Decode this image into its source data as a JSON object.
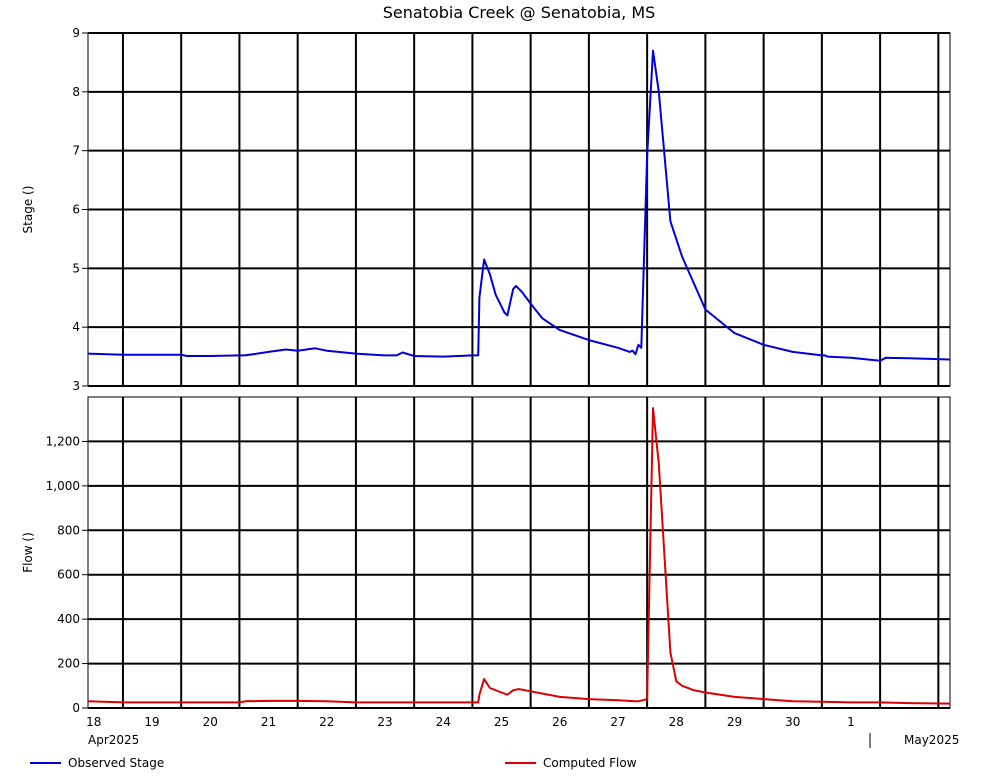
{
  "chart_data": {
    "title": "Senatobia Creek @ Senatobia, MS",
    "type": "line",
    "grid": true,
    "legend_placement": "bottom",
    "x_axis": {
      "day_ticks": [
        "18",
        "19",
        "20",
        "21",
        "22",
        "23",
        "24",
        "25",
        "26",
        "27",
        "28",
        "29",
        "30",
        "1"
      ],
      "month_labels": [
        "Apr2025",
        "May2025"
      ]
    },
    "panels": [
      {
        "ylabel": "Stage ()",
        "ylim": [
          3,
          9
        ],
        "yticks": [
          3,
          4,
          5,
          6,
          7,
          8,
          9
        ],
        "ytick_labels": [
          "3",
          "4",
          "5",
          "6",
          "7",
          "8",
          "9"
        ],
        "series": [
          {
            "name": "Observed Stage",
            "color": "#0000dd",
            "x": [
              17.9,
              18.5,
              19.0,
              19.5,
              19.6,
              20.0,
              20.5,
              20.6,
              21.0,
              21.3,
              21.5,
              21.8,
              22.0,
              22.5,
              23.0,
              23.2,
              23.3,
              23.5,
              24.0,
              24.5,
              24.6,
              24.62,
              24.7,
              24.8,
              24.9,
              25.0,
              25.05,
              25.1,
              25.2,
              25.25,
              25.35,
              25.5,
              25.7,
              26.0,
              26.5,
              27.0,
              27.2,
              27.25,
              27.3,
              27.35,
              27.4,
              27.5,
              27.6,
              27.7,
              27.9,
              28.1,
              28.5,
              29.0,
              29.5,
              30.0,
              30.5,
              30.55,
              30.6,
              31.0,
              31.5,
              31.6,
              32.0,
              32.7
            ],
            "y": [
              3.55,
              3.53,
              3.53,
              3.53,
              3.51,
              3.51,
              3.52,
              3.52,
              3.58,
              3.62,
              3.6,
              3.64,
              3.6,
              3.55,
              3.52,
              3.52,
              3.57,
              3.51,
              3.5,
              3.52,
              3.52,
              4.5,
              5.15,
              4.9,
              4.55,
              4.35,
              4.25,
              4.2,
              4.65,
              4.7,
              4.6,
              4.4,
              4.15,
              3.95,
              3.78,
              3.65,
              3.58,
              3.6,
              3.54,
              3.7,
              3.65,
              6.9,
              8.7,
              8.0,
              5.8,
              5.2,
              4.3,
              3.9,
              3.7,
              3.58,
              3.52,
              3.52,
              3.5,
              3.48,
              3.43,
              3.48,
              3.47,
              3.45
            ]
          }
        ]
      },
      {
        "ylabel": "Flow ()",
        "ylim": [
          0,
          1400
        ],
        "yticks": [
          0,
          200,
          400,
          600,
          800,
          1000,
          1200
        ],
        "ytick_labels": [
          "0",
          "200",
          "400",
          "600",
          "800",
          "1,000",
          "1,200"
        ],
        "series": [
          {
            "name": "Computed Flow",
            "color": "#dd0000",
            "x": [
              17.9,
              18.5,
              19.0,
              20.0,
              20.5,
              20.6,
              21.0,
              21.5,
              22.0,
              22.5,
              23.0,
              23.5,
              24.0,
              24.5,
              24.6,
              24.62,
              24.7,
              24.8,
              25.0,
              25.1,
              25.2,
              25.3,
              25.5,
              26.0,
              26.5,
              27.0,
              27.3,
              27.35,
              27.5,
              27.6,
              27.7,
              27.9,
              28.0,
              28.1,
              28.3,
              28.5,
              29.0,
              29.5,
              30.0,
              30.5,
              31.0,
              31.5,
              32.0,
              32.7
            ],
            "y": [
              30,
              25,
              25,
              25,
              25,
              30,
              32,
              32,
              30,
              25,
              25,
              25,
              25,
              25,
              25,
              60,
              130,
              90,
              70,
              60,
              80,
              85,
              75,
              50,
              40,
              35,
              30,
              30,
              40,
              1350,
              1100,
              250,
              120,
              100,
              80,
              70,
              50,
              40,
              30,
              28,
              25,
              25,
              22,
              20
            ]
          }
        ]
      }
    ]
  }
}
